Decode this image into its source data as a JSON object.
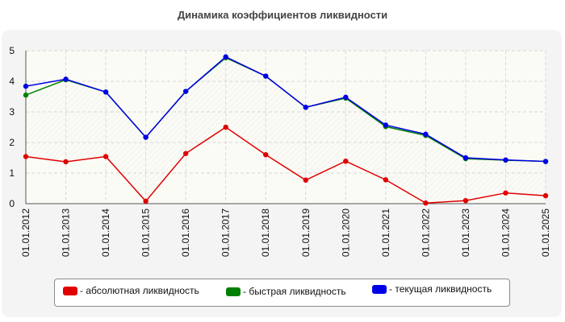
{
  "chart_data": {
    "type": "line",
    "title": "Динамика коэффициентов ликвидности",
    "x": [
      "01.01.2012",
      "01.01.2013",
      "01.01.2014",
      "01.01.2015",
      "01.01.2016",
      "01.01.2017",
      "01.01.2018",
      "01.01.2019",
      "01.01.2020",
      "01.01.2021",
      "01.01.2022",
      "01.01.2023",
      "01.01.2024",
      "01.01.2025"
    ],
    "yticks": [
      "0",
      "1",
      "2",
      "3",
      "4",
      "5"
    ],
    "ylim": [
      0,
      5
    ],
    "grid": true,
    "legend_position": "bottom",
    "series": [
      {
        "name": "- абсолютная ликвидность",
        "color": "#e00000",
        "values": [
          1.54,
          1.37,
          1.54,
          0.08,
          1.64,
          2.5,
          1.6,
          0.77,
          1.39,
          0.78,
          0.02,
          0.1,
          0.35,
          0.26
        ]
      },
      {
        "name": "- быстрая ликвидность",
        "color": "#008000",
        "values": [
          3.55,
          4.05,
          3.65,
          2.17,
          3.67,
          4.77,
          4.17,
          3.15,
          3.45,
          2.52,
          2.23,
          1.47,
          1.42,
          1.38
        ]
      },
      {
        "name": "- текущая ликвидность",
        "color": "#0000e8",
        "values": [
          3.84,
          4.07,
          3.65,
          2.17,
          3.67,
          4.8,
          4.17,
          3.15,
          3.48,
          2.57,
          2.27,
          1.5,
          1.43,
          1.38
        ]
      }
    ]
  }
}
